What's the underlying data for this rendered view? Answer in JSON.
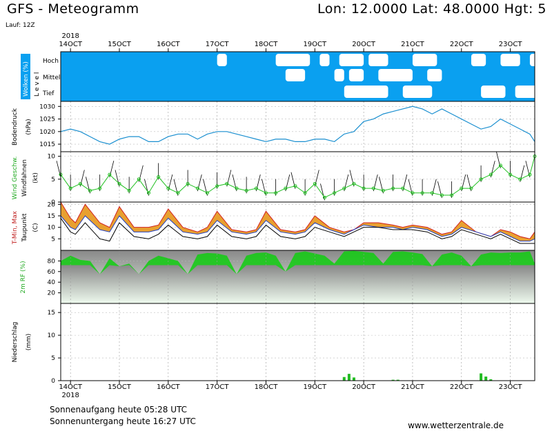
{
  "header": {
    "title": "GFS - Meteogramm",
    "coords": "Lon: 12.0000 Lat: 48.0000 Hgt: 5",
    "run": "Lauf: 12Z"
  },
  "footer": {
    "sunrise": "Sonnenaufgang heute 05:28 UTC",
    "sunset": "Sonnenuntergang heute 16:27 UTC",
    "site": "www.wetterzentrale.de"
  },
  "colors": {
    "cloud_sky": "#0aa0f0",
    "pressure": "#1a8fd0",
    "wind_speed": "#22c022",
    "tmax_fill": "#e8a030",
    "tmin_fill": "#d8d830",
    "rh": "#11cc11",
    "precip": "#22bb22"
  },
  "chart_data": [
    {
      "type": "heatmap",
      "panel": "clouds",
      "ylabel": "Wolken (%)",
      "side_label": "L e v e l",
      "levels": [
        "Hoch",
        "Mittel",
        "Tief"
      ],
      "x_ticks": [
        "14OCT",
        "15OCT",
        "16OCT",
        "17OCT",
        "18OCT",
        "19OCT",
        "20OCT",
        "21OCT",
        "22OCT",
        "23OCT"
      ],
      "year_label": "2018",
      "clear_intervals": {
        "Hoch": [
          [
            17.0,
            17.2
          ],
          [
            18.2,
            18.9
          ],
          [
            19.1,
            19.3
          ],
          [
            19.5,
            20.0
          ],
          [
            20.1,
            20.5
          ],
          [
            21.0,
            21.5
          ],
          [
            22.2,
            22.5
          ],
          [
            22.8,
            23.2
          ],
          [
            23.4,
            23.7
          ]
        ],
        "Mittel": [
          [
            18.4,
            18.8
          ],
          [
            19.4,
            19.6
          ],
          [
            19.7,
            20.0
          ],
          [
            20.3,
            21.0
          ],
          [
            21.3,
            21.6
          ]
        ],
        "Tief": [
          [
            19.6,
            20.5
          ],
          [
            20.8,
            21.4
          ],
          [
            22.4,
            22.9
          ],
          [
            23.1,
            23.7
          ]
        ]
      }
    },
    {
      "type": "line",
      "panel": "pressure",
      "ylabel": "Bodendruck (hPa)",
      "ylim": [
        1012,
        1032
      ],
      "y_ticks": [
        1015,
        1020,
        1025,
        1030
      ],
      "x": [
        13.8,
        14.0,
        14.2,
        14.4,
        14.6,
        14.8,
        15.0,
        15.2,
        15.4,
        15.6,
        15.8,
        16.0,
        16.2,
        16.4,
        16.6,
        16.8,
        17.0,
        17.2,
        17.4,
        17.6,
        17.8,
        18.0,
        18.2,
        18.4,
        18.6,
        18.8,
        19.0,
        19.2,
        19.4,
        19.6,
        19.8,
        20.0,
        20.2,
        20.4,
        20.6,
        20.8,
        21.0,
        21.2,
        21.4,
        21.6,
        21.8,
        22.0,
        22.2,
        22.4,
        22.6,
        22.8,
        23.0,
        23.2,
        23.4,
        23.5
      ],
      "values": [
        1020,
        1021,
        1020,
        1018,
        1016,
        1015,
        1017,
        1018,
        1018,
        1016,
        1016,
        1018,
        1019,
        1019,
        1017,
        1019,
        1020,
        1020,
        1019,
        1018,
        1017,
        1016,
        1017,
        1017,
        1016,
        1016,
        1017,
        1017,
        1016,
        1019,
        1020,
        1024,
        1025,
        1027,
        1028,
        1029,
        1030,
        1029,
        1027,
        1029,
        1027,
        1025,
        1023,
        1021,
        1022,
        1025,
        1023,
        1021,
        1019,
        1016
      ]
    },
    {
      "type": "line",
      "panel": "wind",
      "ylabel": "Wind Geschw.",
      "ylabel2": "Windfahnen (kt)",
      "ylim": [
        0,
        11
      ],
      "y_ticks": [
        0,
        5,
        10
      ],
      "x": [
        13.8,
        14.0,
        14.2,
        14.4,
        14.6,
        14.8,
        15.0,
        15.2,
        15.4,
        15.6,
        15.8,
        16.0,
        16.2,
        16.4,
        16.6,
        16.8,
        17.0,
        17.2,
        17.4,
        17.6,
        17.8,
        18.0,
        18.2,
        18.4,
        18.6,
        18.8,
        19.0,
        19.2,
        19.4,
        19.6,
        19.8,
        20.0,
        20.2,
        20.4,
        20.6,
        20.8,
        21.0,
        21.2,
        21.4,
        21.6,
        21.8,
        22.0,
        22.2,
        22.4,
        22.6,
        22.8,
        23.0,
        23.2,
        23.4,
        23.5
      ],
      "values": [
        6,
        3,
        4,
        2.5,
        3,
        6,
        4,
        2.5,
        5,
        2,
        5.5,
        3,
        2,
        4,
        3,
        2,
        3.5,
        4,
        3,
        2.5,
        3,
        2,
        2,
        3,
        3.5,
        2,
        4,
        1,
        2,
        3,
        4,
        3,
        3,
        2.5,
        3,
        3,
        2,
        2,
        2,
        1.5,
        1.5,
        3,
        3,
        5,
        6,
        8,
        6,
        5,
        6,
        10
      ]
    },
    {
      "type": "area",
      "panel": "temperature",
      "ylabel": "T-Min, Max",
      "ylabel2": "Taupunkt (C)",
      "ylim": [
        0,
        21
      ],
      "y_ticks": [
        5,
        10,
        15,
        20
      ],
      "x": [
        13.8,
        14.0,
        14.1,
        14.3,
        14.6,
        14.8,
        15.0,
        15.3,
        15.6,
        15.8,
        16.0,
        16.3,
        16.6,
        16.8,
        17.0,
        17.3,
        17.6,
        17.8,
        18.0,
        18.3,
        18.6,
        18.8,
        19.0,
        19.3,
        19.6,
        19.8,
        20.0,
        20.3,
        20.6,
        20.8,
        21.0,
        21.3,
        21.6,
        21.8,
        22.0,
        22.3,
        22.6,
        22.8,
        23.0,
        23.2,
        23.4,
        23.5
      ],
      "series": [
        {
          "name": "T-Max",
          "values": [
            21,
            14,
            12,
            20,
            12,
            10,
            19,
            10,
            10,
            11,
            18,
            10,
            8,
            10,
            17,
            9,
            8,
            9,
            17,
            9,
            8,
            9,
            15,
            10,
            8,
            9,
            12,
            12,
            11,
            10,
            11,
            10,
            7,
            8,
            13,
            8,
            6,
            9,
            8,
            6,
            5,
            8
          ]
        },
        {
          "name": "T-Min",
          "values": [
            15,
            10,
            9,
            15,
            9,
            8,
            15,
            8,
            8,
            9,
            14,
            8,
            7,
            8,
            13,
            8,
            7,
            8,
            13,
            8,
            7,
            8,
            12,
            9,
            7,
            9,
            11,
            10,
            10,
            9,
            10,
            9,
            6,
            7,
            10,
            8,
            6,
            8,
            6,
            4,
            4,
            5
          ]
        },
        {
          "name": "Taupunkt",
          "values": [
            14,
            8,
            7,
            12,
            5,
            4,
            12,
            6,
            5,
            7,
            11,
            6,
            5,
            6,
            11,
            6,
            5,
            6,
            11,
            6,
            5,
            6,
            10,
            8,
            6,
            8,
            10,
            10,
            9,
            9,
            9,
            8,
            5,
            6,
            9,
            7,
            5,
            7,
            5,
            3,
            3,
            3
          ]
        }
      ]
    },
    {
      "type": "area",
      "panel": "humidity",
      "ylabel": "2m RF (%)",
      "ylim": [
        0,
        100
      ],
      "y_ticks": [
        20,
        40,
        60,
        80
      ],
      "x": [
        13.8,
        14.0,
        14.2,
        14.4,
        14.6,
        14.8,
        15.0,
        15.2,
        15.4,
        15.6,
        15.8,
        16.0,
        16.2,
        16.4,
        16.6,
        16.8,
        17.0,
        17.2,
        17.4,
        17.6,
        17.8,
        18.0,
        18.2,
        18.4,
        18.6,
        18.8,
        19.0,
        19.2,
        19.4,
        19.6,
        19.8,
        20.0,
        20.2,
        20.4,
        20.6,
        20.8,
        21.0,
        21.2,
        21.4,
        21.6,
        21.8,
        22.0,
        22.2,
        22.4,
        22.6,
        22.8,
        23.0,
        23.2,
        23.4,
        23.5
      ],
      "values": [
        80,
        90,
        82,
        80,
        55,
        85,
        70,
        75,
        55,
        80,
        90,
        85,
        80,
        55,
        92,
        95,
        94,
        90,
        55,
        90,
        95,
        96,
        90,
        60,
        95,
        98,
        94,
        90,
        75,
        98,
        99,
        97,
        95,
        75,
        97,
        98,
        96,
        93,
        70,
        92,
        96,
        90,
        70,
        92,
        96,
        95,
        96,
        96,
        98,
        75
      ]
    },
    {
      "type": "bar",
      "panel": "precipitation",
      "ylabel": "Niederschlag (mm)",
      "ylim": [
        0,
        17
      ],
      "y_ticks": [
        0,
        5,
        10,
        15
      ],
      "x": [
        19.6,
        19.7,
        19.8,
        20.6,
        20.7,
        22.4,
        22.5,
        22.6
      ],
      "values": [
        0.8,
        1.5,
        0.7,
        0.2,
        0.2,
        1.6,
        0.9,
        0.3
      ]
    }
  ]
}
